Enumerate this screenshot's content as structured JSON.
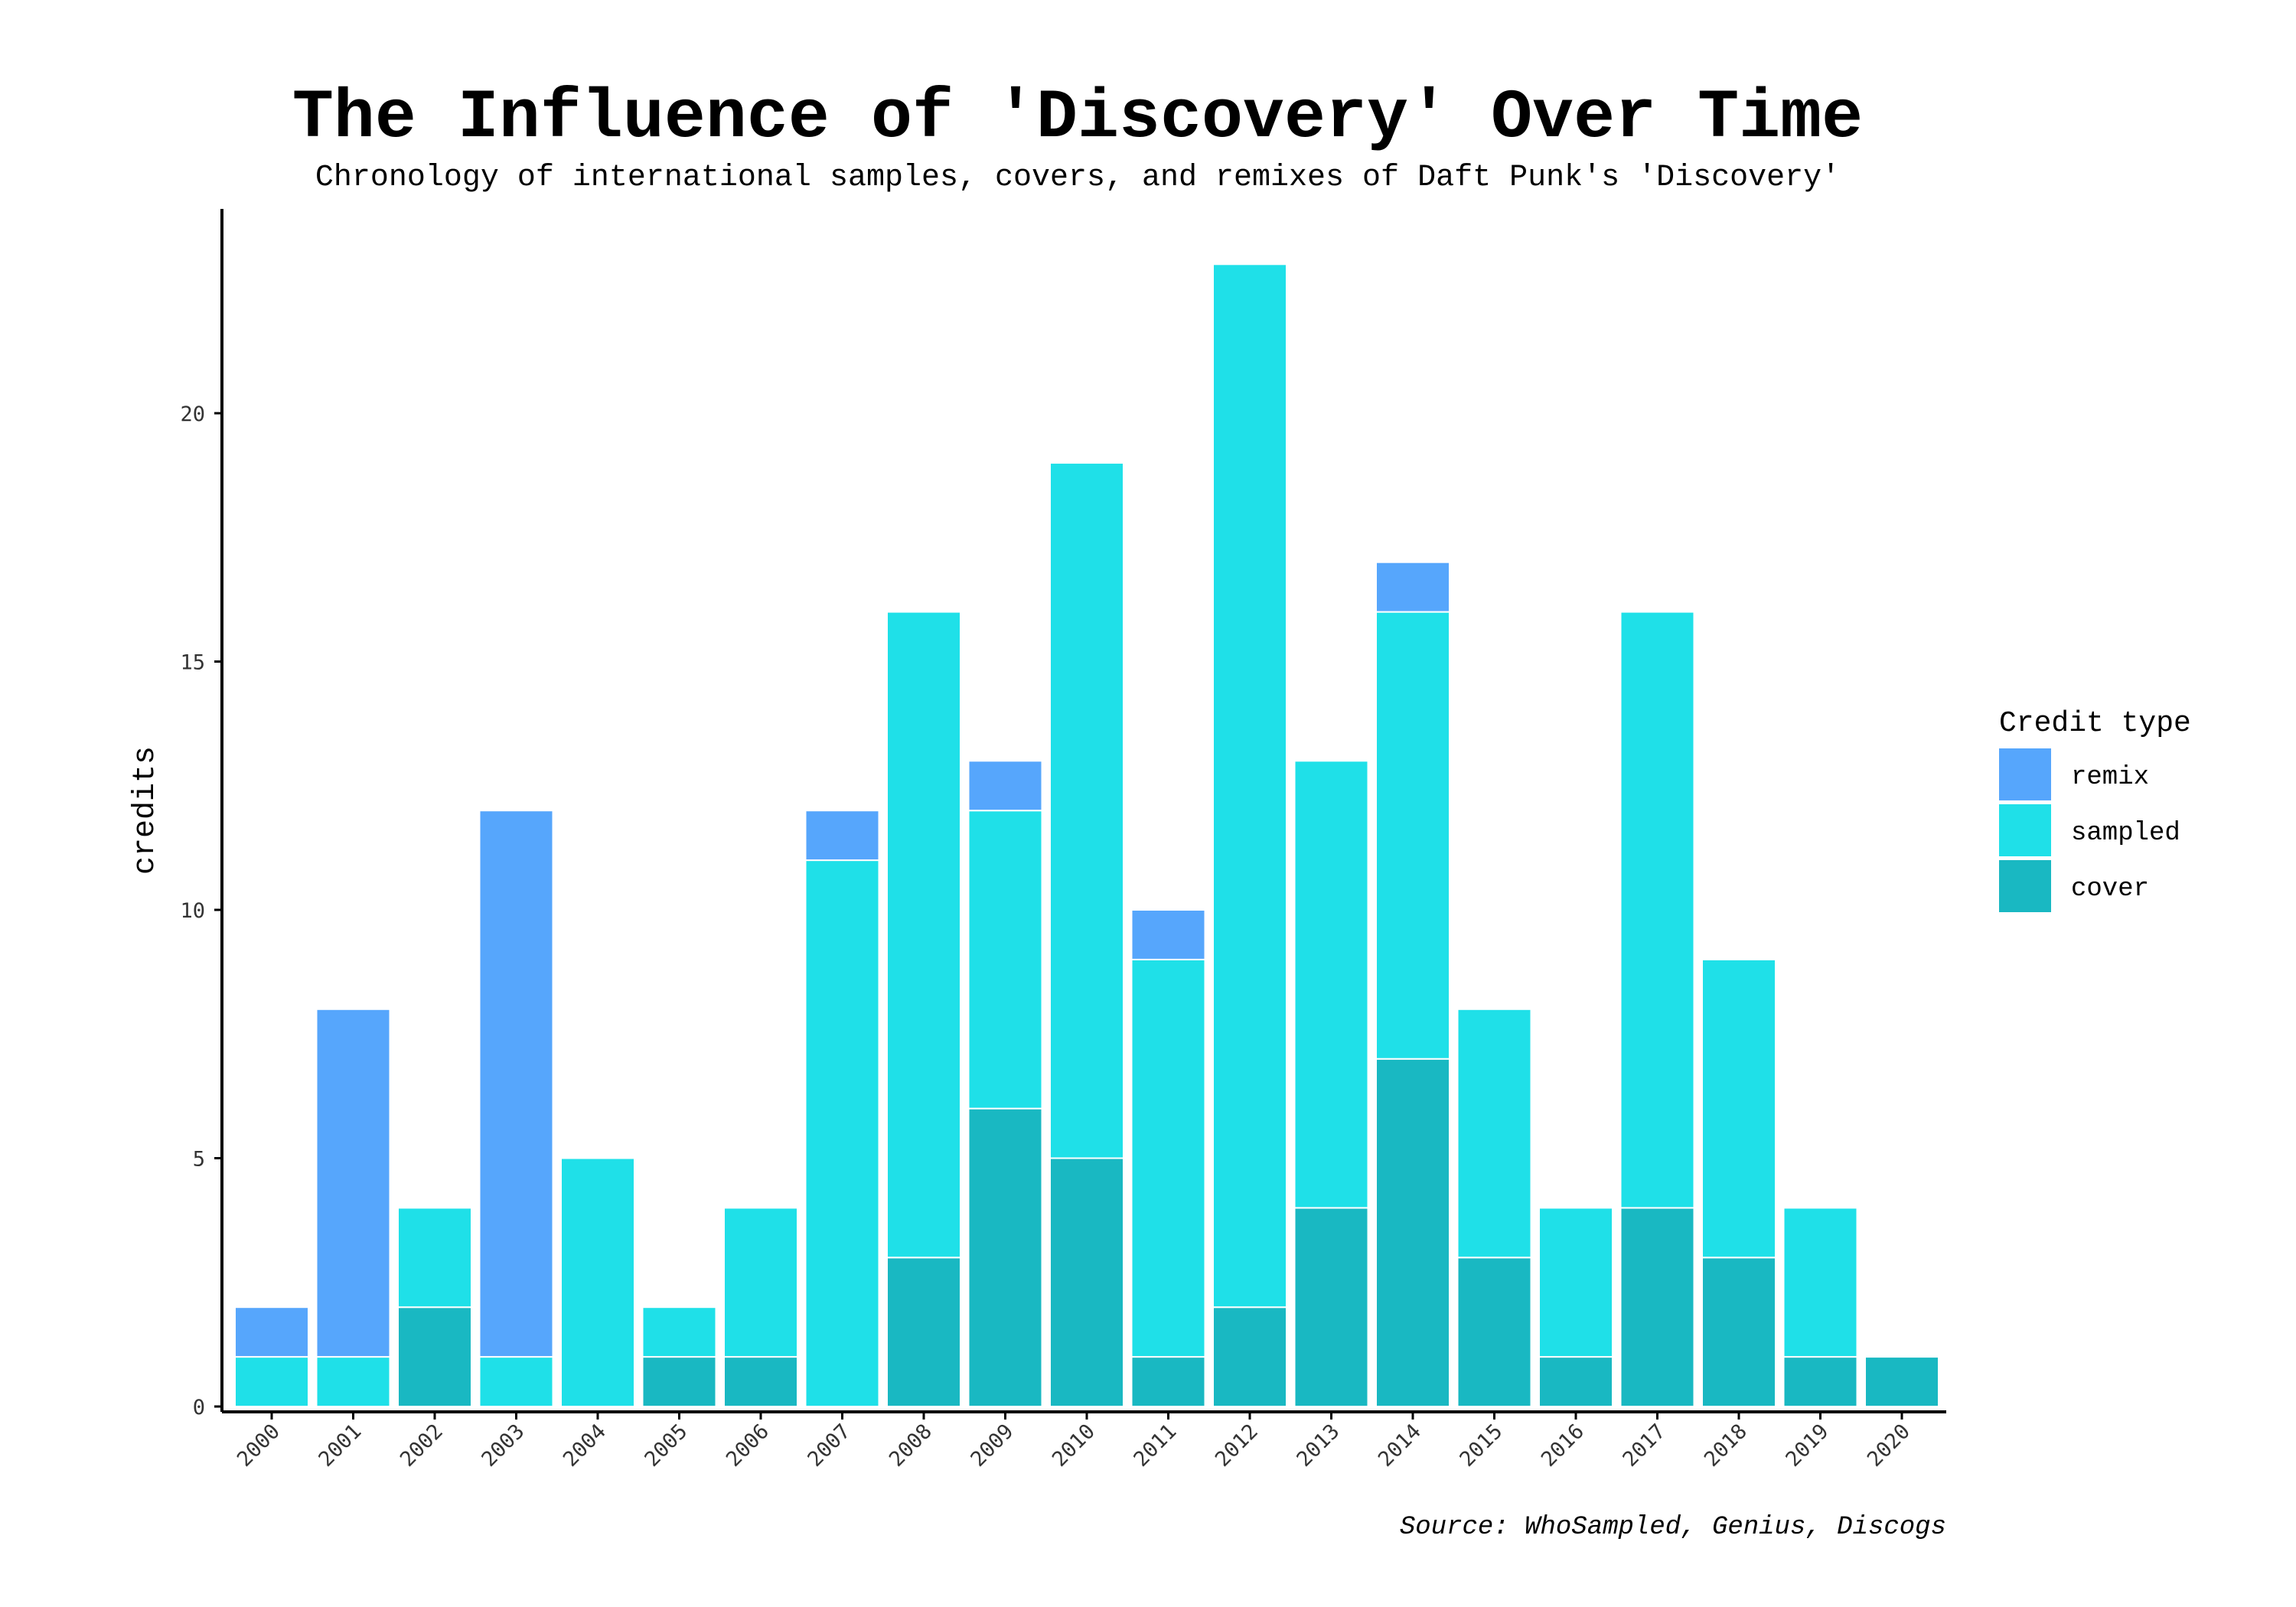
{
  "chart_data": {
    "type": "bar",
    "stacked": true,
    "title": "The Influence of 'Discovery' Over Time",
    "subtitle": "Chronology of international samples, covers, and remixes of Daft Punk's 'Discovery'",
    "xlabel": "",
    "ylabel": "credits",
    "ylim": [
      0,
      24
    ],
    "yticks": [
      0,
      5,
      10,
      15,
      20
    ],
    "grid": false,
    "legend": {
      "title": "Credit type",
      "placement": "right"
    },
    "caption": "Source: WhoSampled, Genius, Discogs",
    "categories": [
      "2000",
      "2001",
      "2002",
      "2003",
      "2004",
      "2005",
      "2006",
      "2007",
      "2008",
      "2009",
      "2010",
      "2011",
      "2012",
      "2013",
      "2014",
      "2015",
      "2016",
      "2017",
      "2018",
      "2019",
      "2020"
    ],
    "series": [
      {
        "name": "cover",
        "color": "#19b8c2",
        "values": [
          0,
          0,
          2,
          0,
          0,
          1,
          1,
          0,
          3,
          6,
          5,
          1,
          2,
          4,
          7,
          3,
          1,
          4,
          3,
          1,
          1
        ]
      },
      {
        "name": "sampled",
        "color": "#1fe0e8",
        "values": [
          1,
          1,
          2,
          1,
          5,
          1,
          3,
          11,
          13,
          6,
          14,
          8,
          21,
          9,
          9,
          5,
          3,
          12,
          6,
          3,
          0
        ]
      },
      {
        "name": "remix",
        "color": "#56a6fc",
        "values": [
          1,
          7,
          0,
          11,
          0,
          0,
          0,
          1,
          0,
          1,
          0,
          1,
          0,
          0,
          1,
          0,
          0,
          0,
          0,
          0,
          0
        ]
      }
    ],
    "legend_order": [
      "remix",
      "sampled",
      "cover"
    ]
  }
}
